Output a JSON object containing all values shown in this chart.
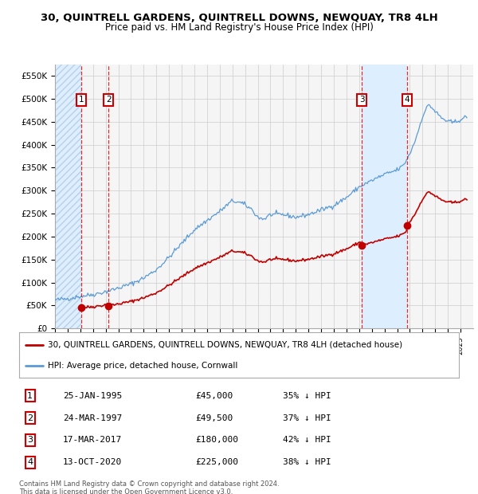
{
  "title": "30, QUINTRELL GARDENS, QUINTRELL DOWNS, NEWQUAY, TR8 4LH",
  "subtitle": "Price paid vs. HM Land Registry's House Price Index (HPI)",
  "ylim": [
    0,
    575000
  ],
  "yticks": [
    0,
    50000,
    100000,
    150000,
    200000,
    250000,
    300000,
    350000,
    400000,
    450000,
    500000,
    550000
  ],
  "ytick_labels": [
    "£0",
    "£50K",
    "£100K",
    "£150K",
    "£200K",
    "£250K",
    "£300K",
    "£350K",
    "£400K",
    "£450K",
    "£500K",
    "£550K"
  ],
  "xlim_start": 1993.0,
  "xlim_end": 2026.0,
  "hpi_color": "#5b9bd5",
  "price_color": "#c00000",
  "legend_label_price": "30, QUINTRELL GARDENS, QUINTRELL DOWNS, NEWQUAY, TR8 4LH (detached house)",
  "legend_label_hpi": "HPI: Average price, detached house, Cornwall",
  "footer": "Contains HM Land Registry data © Crown copyright and database right 2024.\nThis data is licensed under the Open Government Licence v3.0.",
  "transactions": [
    {
      "num": 1,
      "date_label": "25-JAN-1995",
      "price": 45000,
      "hpi_pct": "35% ↓ HPI",
      "year": 1995.07
    },
    {
      "num": 2,
      "date_label": "24-MAR-1997",
      "price": 49500,
      "hpi_pct": "37% ↓ HPI",
      "year": 1997.23
    },
    {
      "num": 3,
      "date_label": "17-MAR-2017",
      "price": 180000,
      "hpi_pct": "42% ↓ HPI",
      "year": 2017.21
    },
    {
      "num": 4,
      "date_label": "13-OCT-2020",
      "price": 225000,
      "hpi_pct": "38% ↓ HPI",
      "year": 2020.79
    }
  ],
  "background_color": "#ffffff",
  "grid_color": "#cccccc",
  "plot_bg_color": "#f5f5f5",
  "shade_color": "#ddeeff",
  "hatch_color": "#b8d0e8"
}
